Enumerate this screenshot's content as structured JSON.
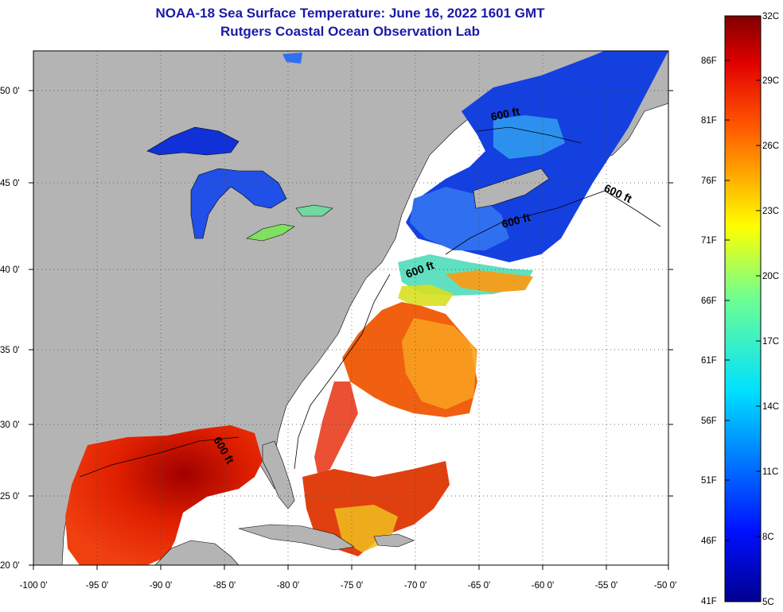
{
  "header": {
    "title": "NOAA-18 Sea Surface Temperature:  June 16, 2022 1601 GMT",
    "subtitle": "Rutgers Coastal Ocean Observation Lab"
  },
  "map": {
    "lat_labels": [
      "50 0'",
      "45 0'",
      "40 0'",
      "35 0'",
      "30 0'",
      "25 0'",
      "20 0'"
    ],
    "lon_labels": [
      "-100 0'",
      "-95 0'",
      "-90 0'",
      "-85 0'",
      "-80 0'",
      "-75 0'",
      "-70 0'",
      "-65 0'",
      "-60 0'",
      "-55 0'",
      "-50 0'"
    ],
    "contour_labels": [
      "600 ft",
      "600 ft",
      "600 ft",
      "600 ft",
      "600 ft"
    ],
    "land_color": "#b4b4b4",
    "no_data_color": "#ffffff"
  },
  "colorbar": {
    "celsius_labels": [
      "32C",
      "29C",
      "26C",
      "23C",
      "20C",
      "17C",
      "14C",
      "11C",
      "8C",
      "5C"
    ],
    "fahrenheit_labels": [
      "86F",
      "81F",
      "76F",
      "71F",
      "66F",
      "61F",
      "56F",
      "51F",
      "46F",
      "41F"
    ]
  }
}
